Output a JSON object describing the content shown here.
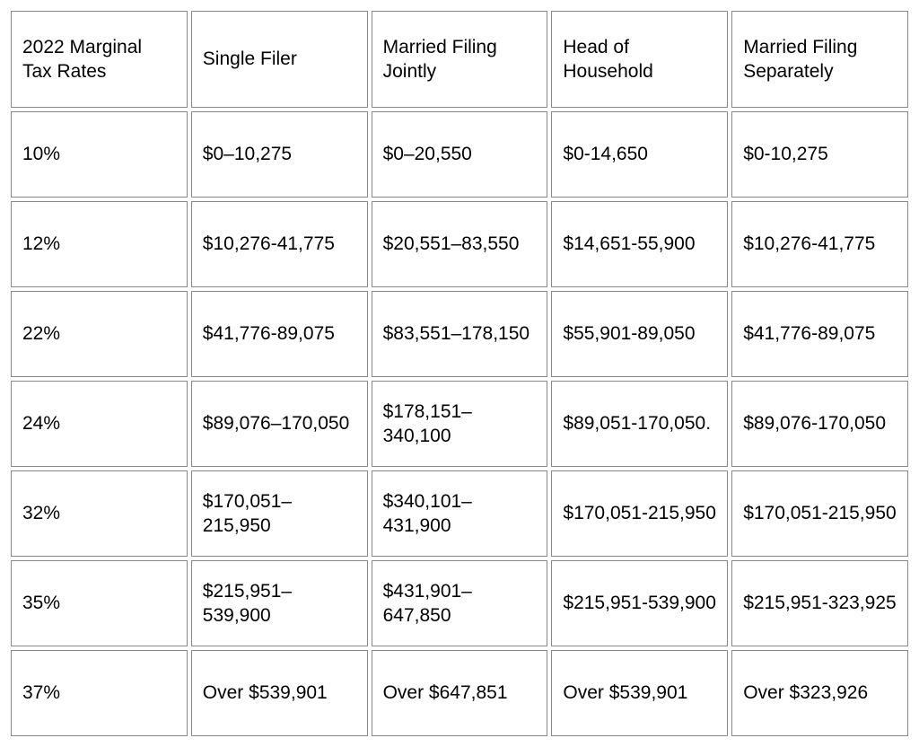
{
  "table": {
    "columns": [
      "2022 Marginal Tax Rates",
      "Single Filer",
      "Married Filing Jointly",
      "Head of Household",
      "Married Filing Separately"
    ],
    "rows": [
      [
        "10%",
        "$0–10,275",
        "$0–20,550",
        "$0-14,650",
        "$0-10,275"
      ],
      [
        "12%",
        "$10,276-41,775",
        "$20,551–83,550",
        "$14,651-55,900",
        "$10,276-41,775"
      ],
      [
        "22%",
        "$41,776-89,075",
        "$83,551–178,150",
        "$55,901-89,050",
        "$41,776-89,075"
      ],
      [
        "24%",
        "$89,076–170,050",
        "$178,151–340,100",
        "$89,051-170,050.",
        "$89,076-170,050"
      ],
      [
        "32%",
        "$170,051–215,950",
        "$340,101–431,900",
        "$170,051-215,950",
        "$170,051-215,950"
      ],
      [
        "35%",
        "$215,951–539,900",
        "$431,901–647,850",
        "$215,951-539,900",
        "$215,951-323,925"
      ],
      [
        "37%",
        "Over $539,901",
        "Over $647,851",
        "Over $539,901",
        "Over $323,926"
      ]
    ],
    "border_color": "#888888",
    "background_color": "#ffffff",
    "text_color": "#000000",
    "font_size": 21,
    "cell_padding": "18px 12px",
    "border_spacing": 4
  }
}
